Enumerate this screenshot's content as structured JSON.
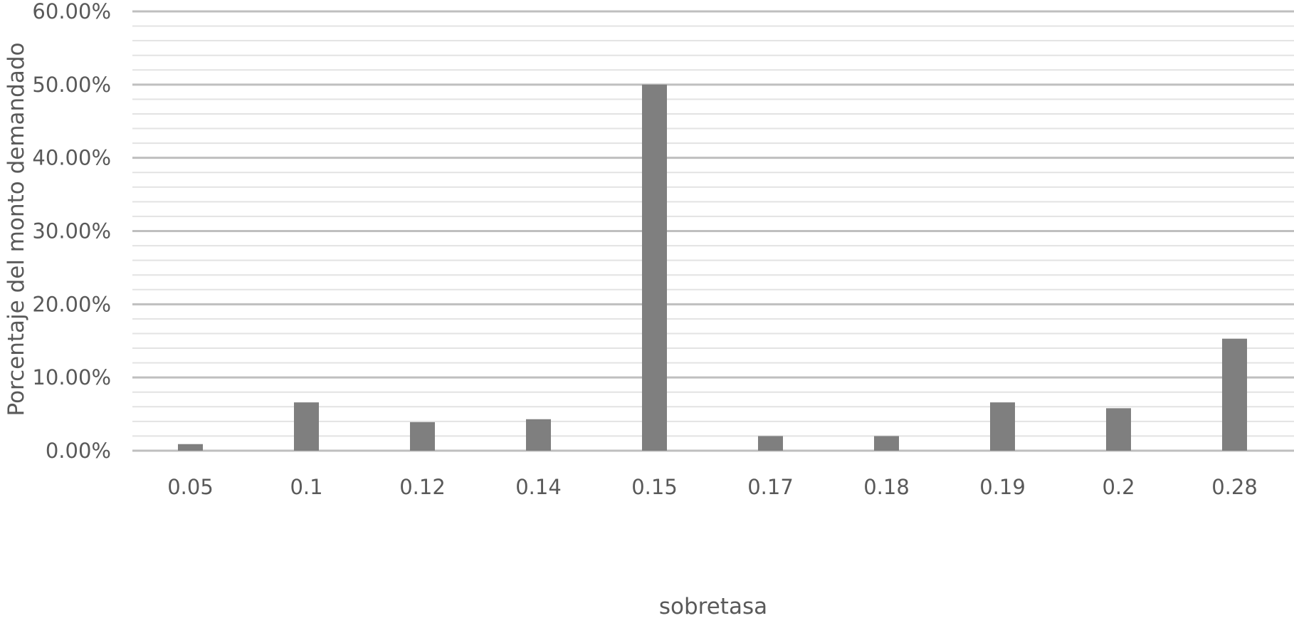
{
  "chart_data": {
    "type": "bar",
    "title": "",
    "xlabel": "sobretasa",
    "ylabel": "Porcentaje del monto demandado",
    "categories": [
      "0.05",
      "0.1",
      "0.12",
      "0.14",
      "0.15",
      "0.17",
      "0.18",
      "0.19",
      "0.2",
      "0.28"
    ],
    "values": [
      0.9,
      6.6,
      3.9,
      4.3,
      50.0,
      2.0,
      2.0,
      6.6,
      5.8,
      15.3
    ],
    "ylim": [
      0,
      60
    ],
    "yticks": [
      0,
      10,
      20,
      30,
      40,
      50,
      60
    ],
    "ytick_labels": [
      "0.00%",
      "10.00%",
      "20.00%",
      "30.00%",
      "40.00%",
      "50.00%",
      "60.00%"
    ],
    "minor_gridlines_per_major": 5,
    "grid": true,
    "legend": "none",
    "colors": {
      "bar": "#7f7f7f",
      "major_grid": "#bfbfbf",
      "minor_grid": "#e3e3e3",
      "text": "#595959"
    }
  }
}
